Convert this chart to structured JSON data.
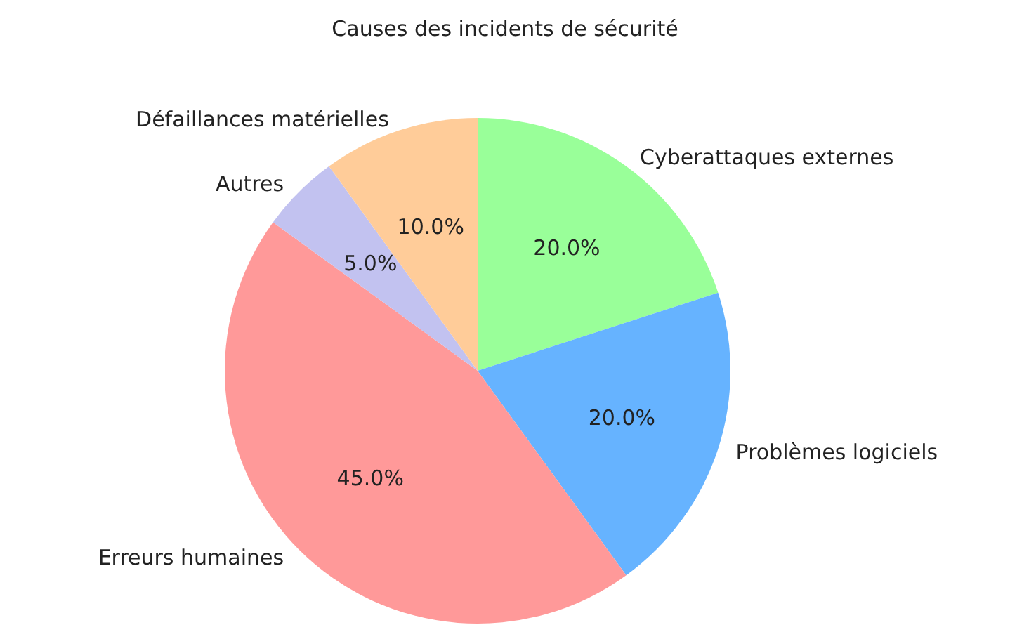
{
  "chart_data": {
    "type": "pie",
    "title": "Causes des incidents de sécurité",
    "categories": [
      "Cyberattaques externes",
      "Problèmes logiciels",
      "Erreurs humaines",
      "Autres",
      "Défaillances matérielles"
    ],
    "values": [
      20,
      20,
      45,
      5,
      10
    ],
    "colors": [
      "#99ff99",
      "#66b3ff",
      "#ff9999",
      "#c2c2f0",
      "#ffcc99"
    ],
    "value_labels": [
      "20.0%",
      "20.0%",
      "45.0%",
      "5.0%",
      "10.0%"
    ],
    "legend": false
  }
}
